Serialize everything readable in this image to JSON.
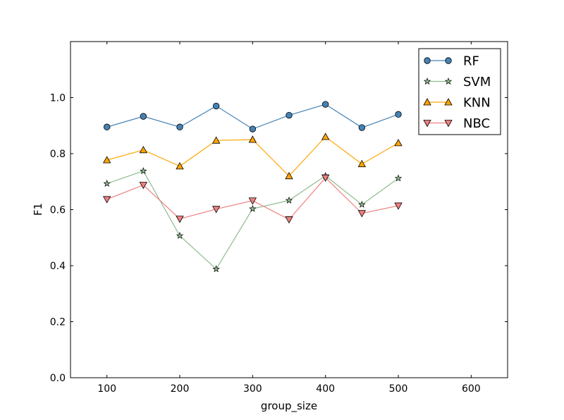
{
  "chart_data": {
    "type": "line",
    "title": "",
    "xlabel": "group_size",
    "ylabel": "F1",
    "xlim": [
      50,
      650
    ],
    "ylim": [
      0.0,
      1.2
    ],
    "xticks": [
      100,
      200,
      300,
      400,
      500,
      600
    ],
    "yticks": [
      0.0,
      0.2,
      0.4,
      0.6,
      0.8,
      1.0
    ],
    "xtick_labels": [
      "100",
      "200",
      "300",
      "400",
      "500",
      "600"
    ],
    "ytick_labels": [
      "0.0",
      "0.2",
      "0.4",
      "0.6",
      "0.8",
      "1.0"
    ],
    "grid": false,
    "legend_position": "top-right",
    "x": [
      100,
      150,
      200,
      250,
      300,
      350,
      400,
      450,
      500
    ],
    "series": [
      {
        "name": "RF",
        "marker": "circle",
        "color": "#4682b4",
        "values": [
          0.895,
          0.933,
          0.895,
          0.97,
          0.888,
          0.937,
          0.976,
          0.893,
          0.94
        ]
      },
      {
        "name": "SVM",
        "marker": "star",
        "color": "#8fbc8f",
        "values": [
          0.693,
          0.738,
          0.507,
          0.388,
          0.603,
          0.633,
          0.721,
          0.618,
          0.712
        ]
      },
      {
        "name": "KNN",
        "marker": "triangle-up",
        "color": "#ffa500",
        "values": [
          0.777,
          0.813,
          0.755,
          0.847,
          0.85,
          0.72,
          0.86,
          0.763,
          0.838
        ]
      },
      {
        "name": "NBC",
        "marker": "triangle-down",
        "color": "#f08080",
        "values": [
          0.637,
          0.688,
          0.567,
          0.602,
          0.632,
          0.565,
          0.714,
          0.587,
          0.614
        ]
      }
    ]
  }
}
